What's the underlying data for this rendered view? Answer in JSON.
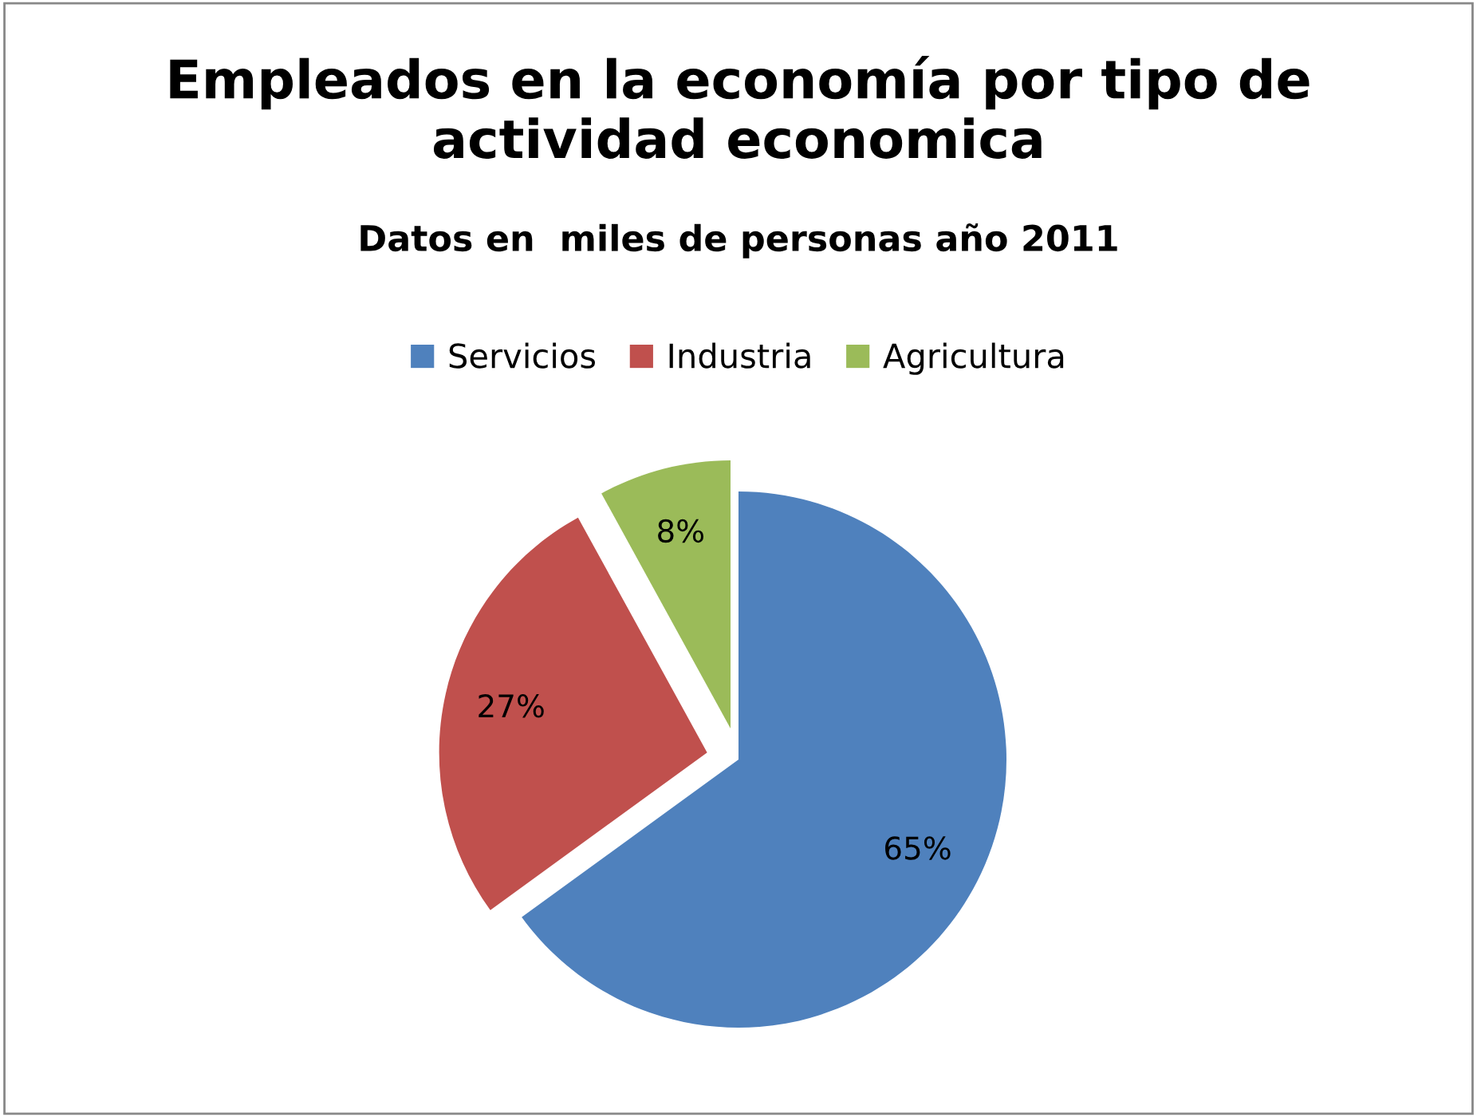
{
  "chart_data": {
    "type": "pie",
    "title": "Empleados en la economía por tipo de actividad economica",
    "subtitle": "Datos en  miles de personas año 2011",
    "categories": [
      "Servicios",
      "Industria",
      "Agricultura"
    ],
    "values": [
      65,
      27,
      8
    ],
    "colors": [
      "#4f81bd",
      "#c0504d",
      "#9bbb59"
    ],
    "value_labels": [
      "65%",
      "27%",
      "8%"
    ],
    "legend": "top"
  }
}
